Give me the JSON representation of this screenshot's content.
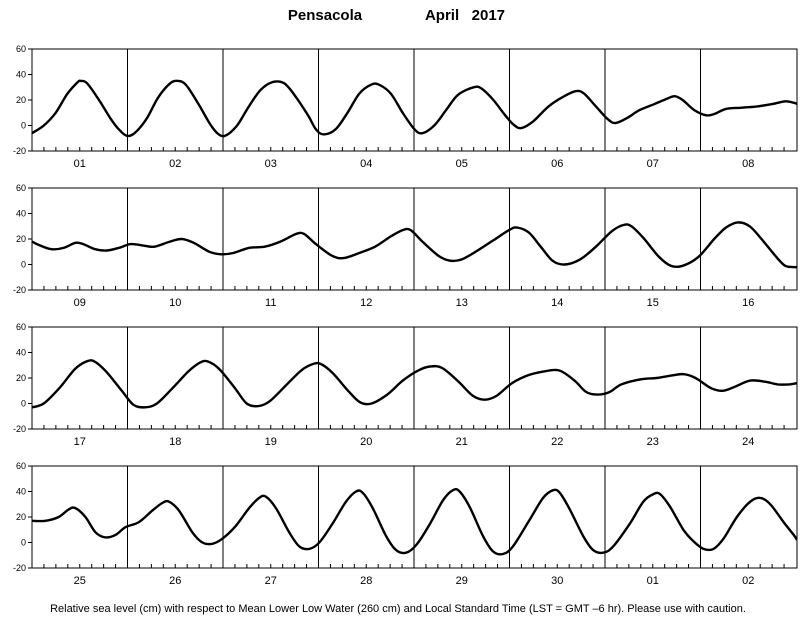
{
  "title": {
    "station": "Pensacola",
    "period": "April   2017"
  },
  "footer": "Relative sea level (cm) with respect to Mean Lower Low Water (260 cm) and Local Standard Time (LST = GMT –6 hr). Please use with caution.",
  "chart_data": {
    "type": "line",
    "ylim": [
      -20,
      60
    ],
    "yticks": [
      -20,
      0,
      20,
      40,
      60
    ],
    "grid": "vertical day separators only",
    "color": "#000000",
    "panels": [
      {
        "days": [
          "01",
          "02",
          "03",
          "04",
          "05",
          "06",
          "07",
          "08"
        ],
        "points": [
          [
            0.0,
            -6
          ],
          [
            0.15,
            0
          ],
          [
            0.3,
            10
          ],
          [
            0.45,
            25
          ],
          [
            0.58,
            34
          ],
          [
            0.62,
            35
          ],
          [
            0.7,
            33
          ],
          [
            0.85,
            20
          ],
          [
            1.0,
            5
          ],
          [
            1.1,
            -3
          ],
          [
            1.2,
            -8
          ],
          [
            1.3,
            -6
          ],
          [
            1.45,
            5
          ],
          [
            1.6,
            22
          ],
          [
            1.75,
            33
          ],
          [
            1.85,
            35
          ],
          [
            1.95,
            32
          ],
          [
            2.1,
            18
          ],
          [
            2.25,
            2
          ],
          [
            2.35,
            -6
          ],
          [
            2.45,
            -8
          ],
          [
            2.6,
            0
          ],
          [
            2.75,
            15
          ],
          [
            2.9,
            28
          ],
          [
            3.05,
            34
          ],
          [
            3.2,
            33
          ],
          [
            3.35,
            22
          ],
          [
            3.5,
            8
          ],
          [
            3.6,
            -3
          ],
          [
            3.7,
            -7
          ],
          [
            3.85,
            -3
          ],
          [
            4.0,
            10
          ],
          [
            4.15,
            25
          ],
          [
            4.3,
            32
          ],
          [
            4.4,
            32
          ],
          [
            4.55,
            25
          ],
          [
            4.7,
            10
          ],
          [
            4.85,
            -3
          ],
          [
            4.95,
            -6
          ],
          [
            5.1,
            0
          ],
          [
            5.25,
            12
          ],
          [
            5.4,
            24
          ],
          [
            5.6,
            30
          ],
          [
            5.7,
            29
          ],
          [
            5.85,
            20
          ],
          [
            6.0,
            8
          ],
          [
            6.1,
            1
          ],
          [
            6.2,
            -2
          ],
          [
            6.35,
            3
          ],
          [
            6.55,
            15
          ],
          [
            6.75,
            23
          ],
          [
            6.9,
            27
          ],
          [
            7.0,
            25
          ],
          [
            7.15,
            15
          ],
          [
            7.3,
            5
          ],
          [
            7.4,
            2
          ],
          [
            7.55,
            6
          ],
          [
            7.7,
            12
          ],
          [
            7.9,
            17
          ],
          [
            8.05,
            21
          ],
          [
            8.15,
            23
          ],
          [
            8.25,
            20
          ],
          [
            8.4,
            12
          ],
          [
            8.55,
            8
          ],
          [
            8.65,
            9
          ],
          [
            8.8,
            13
          ],
          [
            9.0,
            14
          ],
          [
            9.2,
            15
          ],
          [
            9.4,
            17
          ],
          [
            9.55,
            19
          ],
          [
            9.65,
            18
          ],
          [
            9.7,
            17
          ]
        ]
      },
      {
        "days": [
          "09",
          "10",
          "11",
          "12",
          "13",
          "14",
          "15",
          "16"
        ],
        "points": [
          [
            0.0,
            18
          ],
          [
            0.1,
            15
          ],
          [
            0.25,
            12
          ],
          [
            0.4,
            13
          ],
          [
            0.55,
            17
          ],
          [
            0.65,
            16
          ],
          [
            0.8,
            12
          ],
          [
            0.95,
            11
          ],
          [
            1.1,
            13
          ],
          [
            1.25,
            16
          ],
          [
            1.4,
            15
          ],
          [
            1.55,
            14
          ],
          [
            1.75,
            18
          ],
          [
            1.9,
            20
          ],
          [
            2.05,
            17
          ],
          [
            2.25,
            10
          ],
          [
            2.4,
            8
          ],
          [
            2.55,
            9
          ],
          [
            2.75,
            13
          ],
          [
            2.95,
            14
          ],
          [
            3.15,
            18
          ],
          [
            3.35,
            24
          ],
          [
            3.45,
            24
          ],
          [
            3.6,
            16
          ],
          [
            3.8,
            7
          ],
          [
            3.95,
            5
          ],
          [
            4.15,
            9
          ],
          [
            4.35,
            14
          ],
          [
            4.55,
            22
          ],
          [
            4.7,
            27
          ],
          [
            4.8,
            27
          ],
          [
            4.95,
            18
          ],
          [
            5.15,
            7
          ],
          [
            5.3,
            3
          ],
          [
            5.45,
            4
          ],
          [
            5.65,
            11
          ],
          [
            5.85,
            19
          ],
          [
            6.05,
            27
          ],
          [
            6.15,
            29
          ],
          [
            6.3,
            25
          ],
          [
            6.45,
            14
          ],
          [
            6.6,
            3
          ],
          [
            6.75,
            0
          ],
          [
            6.95,
            4
          ],
          [
            7.15,
            14
          ],
          [
            7.35,
            26
          ],
          [
            7.5,
            31
          ],
          [
            7.6,
            30
          ],
          [
            7.75,
            21
          ],
          [
            7.95,
            6
          ],
          [
            8.1,
            -1
          ],
          [
            8.25,
            -1
          ],
          [
            8.45,
            6
          ],
          [
            8.65,
            20
          ],
          [
            8.8,
            29
          ],
          [
            8.95,
            33
          ],
          [
            9.1,
            30
          ],
          [
            9.25,
            20
          ],
          [
            9.45,
            5
          ],
          [
            9.55,
            -1
          ],
          [
            9.65,
            -2
          ],
          [
            9.7,
            -2
          ]
        ]
      },
      {
        "days": [
          "17",
          "18",
          "19",
          "20",
          "21",
          "22",
          "23",
          "24"
        ],
        "points": [
          [
            0.0,
            -3
          ],
          [
            0.15,
            0
          ],
          [
            0.35,
            12
          ],
          [
            0.55,
            27
          ],
          [
            0.7,
            33
          ],
          [
            0.8,
            33
          ],
          [
            0.95,
            25
          ],
          [
            1.15,
            10
          ],
          [
            1.3,
            -1
          ],
          [
            1.45,
            -3
          ],
          [
            1.6,
            0
          ],
          [
            1.8,
            12
          ],
          [
            2.0,
            25
          ],
          [
            2.15,
            32
          ],
          [
            2.25,
            33
          ],
          [
            2.4,
            27
          ],
          [
            2.6,
            12
          ],
          [
            2.75,
            0
          ],
          [
            2.9,
            -2
          ],
          [
            3.05,
            2
          ],
          [
            3.25,
            14
          ],
          [
            3.45,
            26
          ],
          [
            3.6,
            31
          ],
          [
            3.7,
            31
          ],
          [
            3.85,
            24
          ],
          [
            4.05,
            10
          ],
          [
            4.2,
            1
          ],
          [
            4.35,
            0
          ],
          [
            4.55,
            7
          ],
          [
            4.75,
            18
          ],
          [
            4.95,
            26
          ],
          [
            5.1,
            29
          ],
          [
            5.25,
            28
          ],
          [
            5.45,
            18
          ],
          [
            5.65,
            6
          ],
          [
            5.8,
            3
          ],
          [
            5.95,
            6
          ],
          [
            6.15,
            16
          ],
          [
            6.35,
            22
          ],
          [
            6.55,
            25
          ],
          [
            6.75,
            26
          ],
          [
            6.95,
            18
          ],
          [
            7.1,
            9
          ],
          [
            7.25,
            7
          ],
          [
            7.4,
            9
          ],
          [
            7.55,
            15
          ],
          [
            7.8,
            19
          ],
          [
            8.0,
            20
          ],
          [
            8.2,
            22
          ],
          [
            8.35,
            23
          ],
          [
            8.5,
            20
          ],
          [
            8.7,
            12
          ],
          [
            8.85,
            10
          ],
          [
            9.0,
            13
          ],
          [
            9.2,
            18
          ],
          [
            9.4,
            17
          ],
          [
            9.55,
            15
          ],
          [
            9.7,
            15
          ],
          [
            9.8,
            16
          ]
        ]
      },
      {
        "days": [
          "25",
          "26",
          "27",
          "28",
          "29",
          "30",
          "01",
          "02"
        ],
        "points": [
          [
            0.0,
            17
          ],
          [
            0.2,
            17
          ],
          [
            0.4,
            20
          ],
          [
            0.55,
            26
          ],
          [
            0.65,
            27
          ],
          [
            0.8,
            20
          ],
          [
            0.95,
            8
          ],
          [
            1.1,
            4
          ],
          [
            1.25,
            6
          ],
          [
            1.4,
            12
          ],
          [
            1.6,
            16
          ],
          [
            1.8,
            25
          ],
          [
            1.95,
            31
          ],
          [
            2.05,
            32
          ],
          [
            2.2,
            25
          ],
          [
            2.4,
            8
          ],
          [
            2.55,
            0
          ],
          [
            2.7,
            -1
          ],
          [
            2.85,
            3
          ],
          [
            3.05,
            13
          ],
          [
            3.25,
            27
          ],
          [
            3.4,
            35
          ],
          [
            3.5,
            36
          ],
          [
            3.65,
            27
          ],
          [
            3.85,
            8
          ],
          [
            4.0,
            -3
          ],
          [
            4.15,
            -5
          ],
          [
            4.3,
            0
          ],
          [
            4.5,
            15
          ],
          [
            4.7,
            32
          ],
          [
            4.85,
            40
          ],
          [
            4.95,
            39
          ],
          [
            5.1,
            27
          ],
          [
            5.3,
            5
          ],
          [
            5.45,
            -6
          ],
          [
            5.6,
            -8
          ],
          [
            5.75,
            -2
          ],
          [
            5.95,
            14
          ],
          [
            6.15,
            33
          ],
          [
            6.3,
            41
          ],
          [
            6.4,
            40
          ],
          [
            6.55,
            28
          ],
          [
            6.75,
            5
          ],
          [
            6.9,
            -7
          ],
          [
            7.05,
            -9
          ],
          [
            7.2,
            -3
          ],
          [
            7.45,
            18
          ],
          [
            7.65,
            35
          ],
          [
            7.8,
            41
          ],
          [
            7.9,
            39
          ],
          [
            8.05,
            26
          ],
          [
            8.25,
            5
          ],
          [
            8.4,
            -6
          ],
          [
            8.55,
            -8
          ],
          [
            8.7,
            -3
          ],
          [
            8.95,
            15
          ],
          [
            9.15,
            32
          ],
          [
            9.3,
            38
          ],
          [
            9.4,
            38
          ],
          [
            9.55,
            28
          ],
          [
            9.75,
            10
          ],
          [
            9.9,
            1
          ],
          [
            10.05,
            -5
          ],
          [
            10.2,
            -5
          ],
          [
            10.35,
            3
          ],
          [
            10.55,
            20
          ],
          [
            10.75,
            32
          ],
          [
            10.9,
            35
          ],
          [
            11.05,
            30
          ],
          [
            11.25,
            16
          ],
          [
            11.4,
            6
          ],
          [
            11.45,
            2
          ]
        ]
      }
    ]
  }
}
